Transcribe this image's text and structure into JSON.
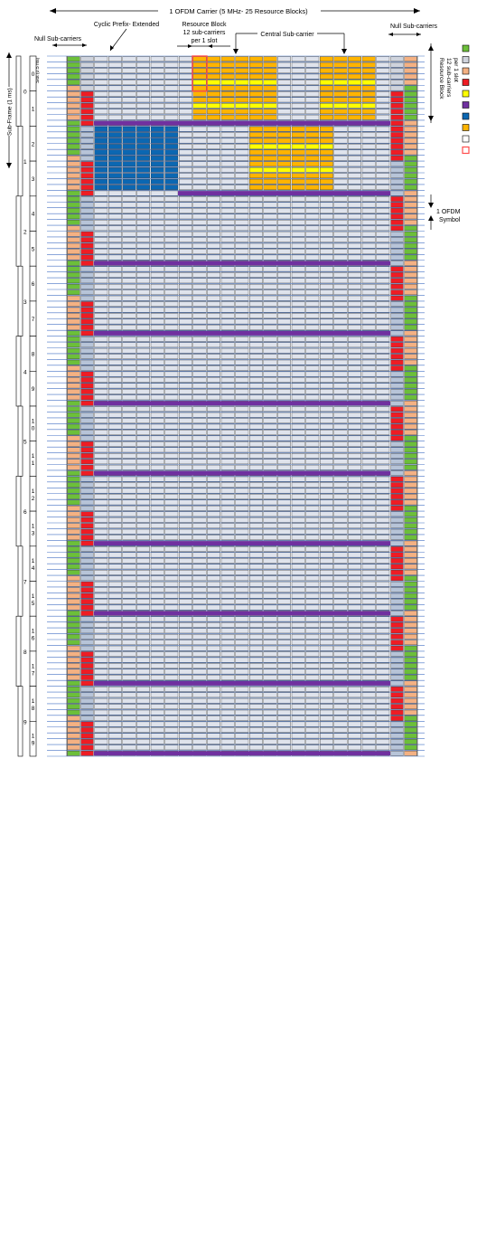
{
  "labels": {
    "carrier": "1 OFDM Carrier (5 MHz- 25 Resource Blocks)",
    "null_left": "Null Sub-carriers",
    "null_right": "Null Sub-carriers",
    "cyclic_prefix": "Cyclic Prefix- Extended",
    "rb_line1": "Resource Block",
    "rb_line2": "12 sub-carriers",
    "rb_line3": "per 1 slot",
    "central": "Central Sub-carrier",
    "subframe": "Sub-Frame (1 ms)",
    "slot": "Slot (0.5 ms)",
    "rb_vert1": "Resource Block",
    "rb_vert2": "12 sub-carriers",
    "rb_vert3": "per 1 slot",
    "ofdm_sym1": "1 OFDM",
    "ofdm_sym2": "Symbol"
  },
  "slot_labels": [
    "0",
    "1",
    "2",
    "3",
    "4",
    "5",
    "6",
    "7",
    "8",
    "9",
    "1\n0",
    "1\n1",
    "1\n2",
    "1\n3",
    "1\n4",
    "1\n5",
    "1\n6",
    "1\n7",
    "1\n8",
    "1\n9"
  ],
  "subframe_labels": [
    "0",
    "1",
    "2",
    "3",
    "4",
    "5",
    "6",
    "7",
    "8",
    "9"
  ],
  "legend_colors": [
    "#6cbf3a",
    "#cfd3dc",
    "#f4b183",
    "#ee1c24",
    "#ffff00",
    "#7030a0",
    "#0b67b2",
    "#ffb400",
    "#ffffff",
    "#ff4d4d"
  ],
  "colors": {
    "green": "#6cbf3a",
    "salmon": "#f4b183",
    "red": "#ee1c24",
    "lightgray": "#d6dae3",
    "graycell": "#cfd3dc",
    "bluegray": "#b7c4d8",
    "cellface": "#dfe3ec",
    "purple": "#7030a0",
    "blue": "#0b67b2",
    "orange": "#ffb400",
    "yellow": "#ffff00",
    "rbline": "#ff4d4d",
    "hline": "#4472c4"
  }
}
